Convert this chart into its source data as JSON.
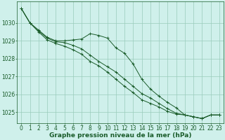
{
  "background_color": "#cff0eb",
  "grid_color": "#99ccbb",
  "line_color": "#1a5c2a",
  "xlabel": "Graphe pression niveau de la mer (hPa)",
  "xlabel_fontsize": 6.5,
  "tick_fontsize": 5.5,
  "ylim": [
    1024.4,
    1031.2
  ],
  "xlim": [
    -0.5,
    23.5
  ],
  "yticks": [
    1025,
    1026,
    1027,
    1028,
    1029,
    1030
  ],
  "xticks": [
    0,
    1,
    2,
    3,
    4,
    5,
    6,
    7,
    8,
    9,
    10,
    11,
    12,
    13,
    14,
    15,
    16,
    17,
    18,
    19,
    20,
    21,
    22,
    23
  ],
  "series1": [
    1030.8,
    1030.0,
    1029.6,
    1029.2,
    1029.0,
    1029.0,
    1029.05,
    1029.1,
    1029.4,
    1029.3,
    1029.15,
    1028.6,
    1028.3,
    1027.7,
    1026.85,
    1026.3,
    1025.9,
    1025.55,
    1025.25,
    1024.85,
    1024.75,
    1024.65,
    1024.85,
    1024.85
  ],
  "series2": [
    1030.8,
    1030.0,
    1029.55,
    1029.15,
    1028.95,
    1028.9,
    1028.75,
    1028.55,
    1028.2,
    1027.85,
    1027.55,
    1027.25,
    1026.85,
    1026.45,
    1026.05,
    1025.8,
    1025.5,
    1025.2,
    1024.95,
    1024.85,
    1024.75,
    1024.65,
    1024.85,
    1024.85
  ],
  "series3": [
    1030.8,
    1030.0,
    1029.5,
    1029.05,
    1028.85,
    1028.7,
    1028.5,
    1028.25,
    1027.85,
    1027.6,
    1027.25,
    1026.85,
    1026.45,
    1026.1,
    1025.7,
    1025.5,
    1025.3,
    1025.05,
    1024.9,
    1024.85,
    1024.75,
    1024.65,
    1024.85,
    1024.85
  ]
}
